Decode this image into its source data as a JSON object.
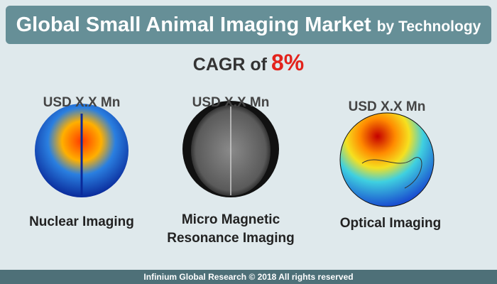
{
  "header": {
    "title": "Global Small Animal Imaging Market",
    "subtitle": "by Technology"
  },
  "cagr": {
    "label": "CAGR of",
    "value": "8%"
  },
  "items": [
    {
      "value": "USD X.X Mn",
      "label": [
        "Nuclear Imaging"
      ]
    },
    {
      "value": "USD X.X Mn",
      "label": [
        "Micro Magnetic",
        "Resonance Imaging"
      ]
    },
    {
      "value": "USD X.X Mn",
      "label": [
        "Optical Imaging"
      ]
    }
  ],
  "footer": "Infinium Global Research © 2018 All rights reserved"
}
